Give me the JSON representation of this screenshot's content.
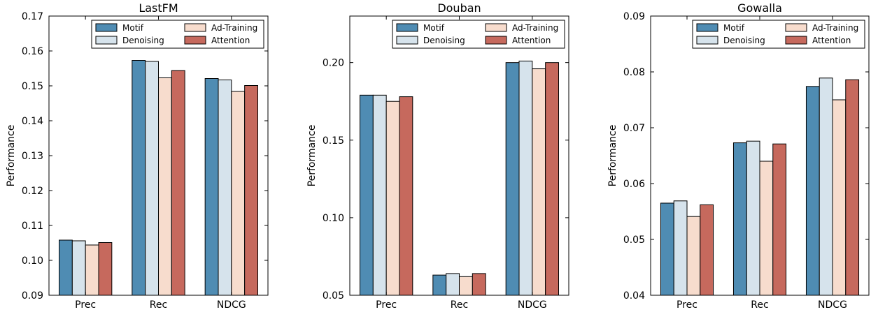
{
  "series_colors": {
    "Motif": "#4f8cb3",
    "Denoising": "#d6e3ec",
    "Ad-Training": "#f7dccd",
    "Attention": "#c6695d"
  },
  "chart_data": [
    {
      "type": "bar",
      "title": "LastFM",
      "xlabel": "",
      "ylabel": "Performance",
      "categories": [
        "Prec",
        "Rec",
        "NDCG"
      ],
      "ylim": [
        0.09,
        0.17
      ],
      "yticks": [
        "0.09",
        "0.10",
        "0.11",
        "0.12",
        "0.13",
        "0.14",
        "0.15",
        "0.16",
        "0.17"
      ],
      "legend_position": "top-right",
      "series": [
        {
          "name": "Motif",
          "values": [
            0.1058,
            0.1573,
            0.1521
          ]
        },
        {
          "name": "Denoising",
          "values": [
            0.1056,
            0.157,
            0.1517
          ]
        },
        {
          "name": "Ad-Training",
          "values": [
            0.1044,
            0.1523,
            0.1484
          ]
        },
        {
          "name": "Attention",
          "values": [
            0.1051,
            0.1544,
            0.1501
          ]
        }
      ]
    },
    {
      "type": "bar",
      "title": "Douban",
      "xlabel": "",
      "ylabel": "Performance",
      "categories": [
        "Prec",
        "Rec",
        "NDCG"
      ],
      "ylim": [
        0.05,
        0.23
      ],
      "yticks": [
        "0.05",
        "0.10",
        "0.15",
        "0.20"
      ],
      "legend_position": "top-right",
      "series": [
        {
          "name": "Motif",
          "values": [
            0.179,
            0.063,
            0.2
          ]
        },
        {
          "name": "Denoising",
          "values": [
            0.179,
            0.064,
            0.201
          ]
        },
        {
          "name": "Ad-Training",
          "values": [
            0.175,
            0.062,
            0.196
          ]
        },
        {
          "name": "Attention",
          "values": [
            0.178,
            0.064,
            0.2
          ]
        }
      ]
    },
    {
      "type": "bar",
      "title": "Gowalla",
      "xlabel": "",
      "ylabel": "Performance",
      "categories": [
        "Prec",
        "Rec",
        "NDCG"
      ],
      "ylim": [
        0.04,
        0.09
      ],
      "yticks": [
        "0.04",
        "0.05",
        "0.06",
        "0.07",
        "0.08",
        "0.09"
      ],
      "legend_position": "top-right",
      "series": [
        {
          "name": "Motif",
          "values": [
            0.0565,
            0.0673,
            0.0774
          ]
        },
        {
          "name": "Denoising",
          "values": [
            0.0569,
            0.0676,
            0.0789
          ]
        },
        {
          "name": "Ad-Training",
          "values": [
            0.0541,
            0.064,
            0.075
          ]
        },
        {
          "name": "Attention",
          "values": [
            0.0562,
            0.0671,
            0.0786
          ]
        }
      ]
    }
  ]
}
